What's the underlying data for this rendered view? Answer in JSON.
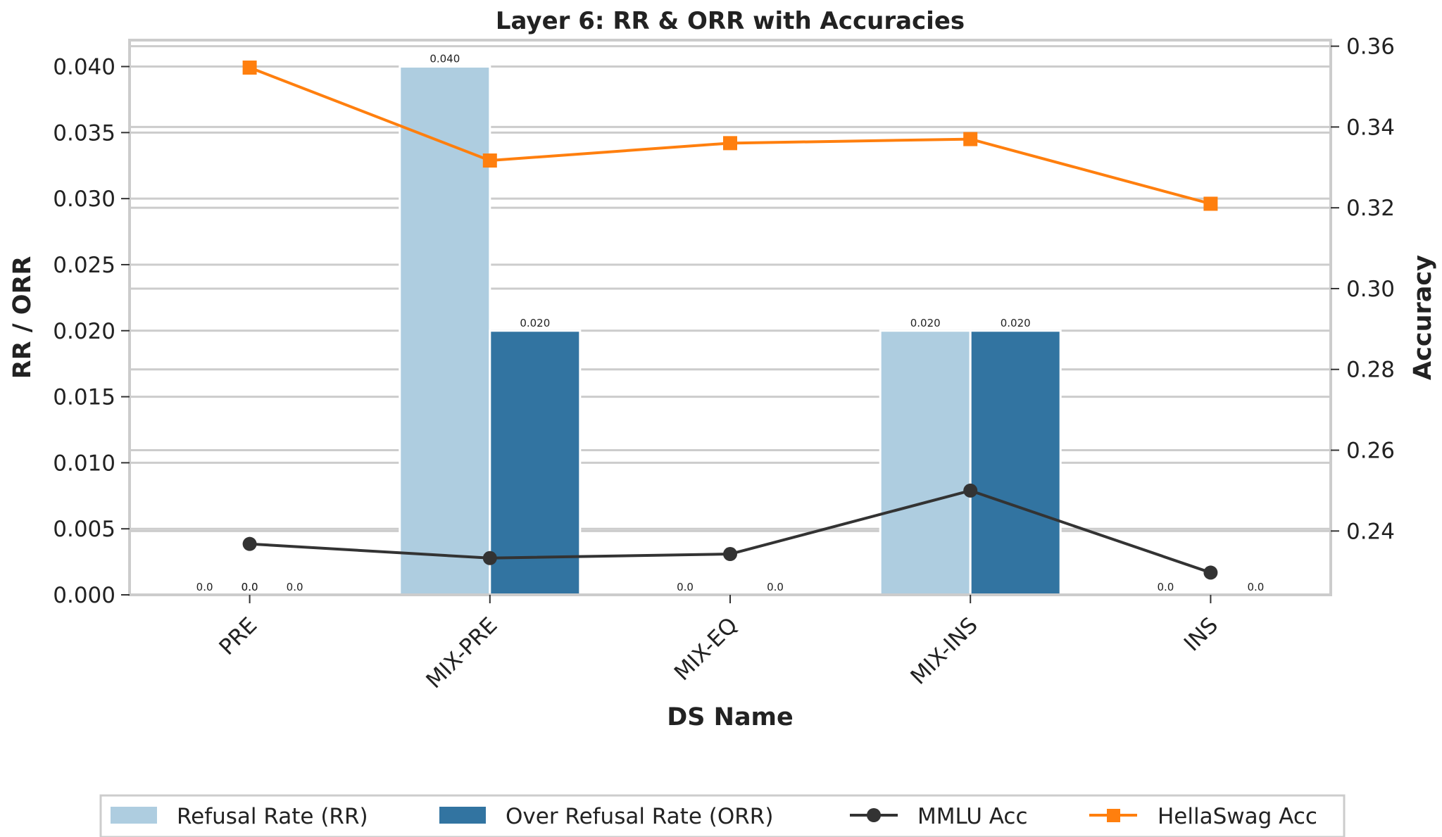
{
  "chart_data": {
    "type": "bar",
    "title": "Layer 6: RR & ORR with Accuracies",
    "xlabel": "DS Name",
    "ylabel": "RR / ORR",
    "y2label": "Accuracy",
    "categories": [
      "PRE",
      "MIX-PRE",
      "MIX-EQ",
      "MIX-INS",
      "INS"
    ],
    "ylim": [
      0,
      0.042
    ],
    "y2lim": [
      0.2242,
      0.3615
    ],
    "yticks": [
      "0.000",
      "0.005",
      "0.010",
      "0.015",
      "0.020",
      "0.025",
      "0.030",
      "0.035",
      "0.040"
    ],
    "y2ticks": [
      "0.24",
      "0.26",
      "0.28",
      "0.30",
      "0.32",
      "0.34",
      "0.36"
    ],
    "grid": true,
    "legend_position": "bottom",
    "series": [
      {
        "name": "Refusal Rate (RR)",
        "kind": "bar",
        "color": "#aecde0",
        "values": [
          0.0,
          0.04,
          0.0,
          0.02,
          0.0
        ],
        "labels": [
          "0.0",
          "0.040",
          "0.0",
          "0.020",
          "0.0"
        ]
      },
      {
        "name": "Over Refusal Rate (ORR)",
        "kind": "bar",
        "color": "#3274a1",
        "values": [
          0.0,
          0.02,
          0.0,
          0.02,
          0.0
        ],
        "labels": [
          "0.0",
          "0.020",
          "0.0",
          "0.020",
          "0.0"
        ]
      },
      {
        "name": "MMLU Acc",
        "kind": "line",
        "axis": "right",
        "marker": "circle",
        "color": "#333333",
        "values": [
          0.2368,
          0.2333,
          0.2343,
          0.25,
          0.2297
        ]
      },
      {
        "name": "HellaSwag Acc",
        "kind": "line",
        "axis": "right",
        "marker": "square",
        "color": "#ff7f0e",
        "values": [
          0.3547,
          0.3317,
          0.336,
          0.337,
          0.321
        ]
      }
    ],
    "extra_labels": [
      {
        "category": "PRE",
        "text": "0.0"
      },
      {
        "category": "PRE",
        "text": "0.0"
      }
    ]
  }
}
